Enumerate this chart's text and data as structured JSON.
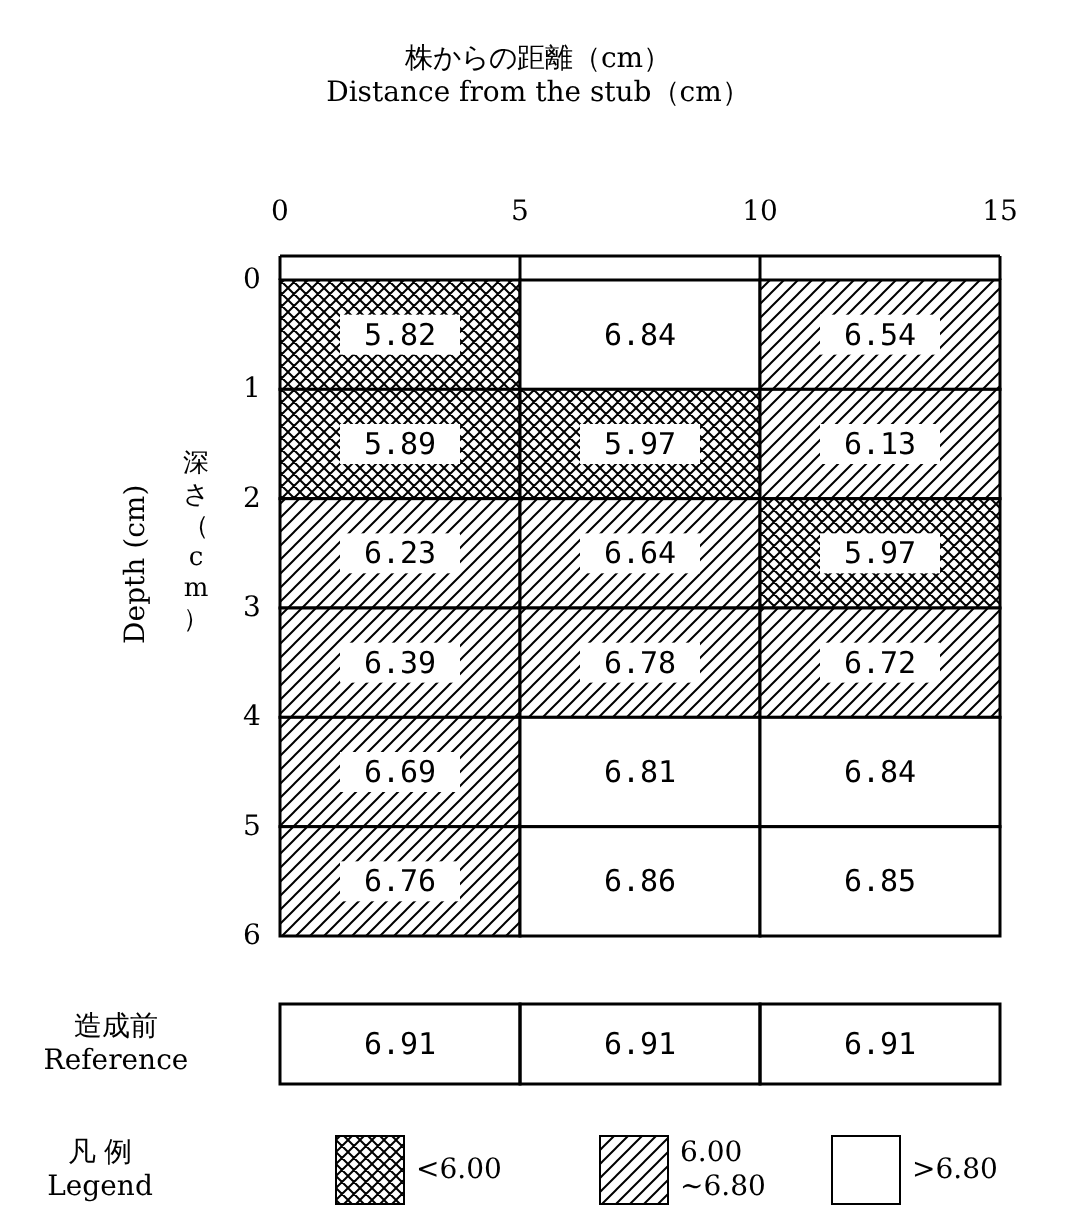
{
  "chart_data": [
    {
      "type": "heatmap",
      "xlabel": "株からの距離（cm）\nDistance from the stub（cm）",
      "ylabel": "Depth (cm)",
      "annotations": [
        "深さ（cm）",
        "<6.00",
        "6.00\n~6.80",
        ">6.80"
      ],
      "xlim": [
        0,
        15
      ],
      "xticks": [
        0,
        5,
        10,
        15
      ],
      "ylim": [
        6,
        0
      ],
      "yticks": [
        0,
        1,
        2,
        3,
        4,
        5,
        6
      ],
      "cells": [
        [
          5.82,
          6.84,
          6.54
        ],
        [
          5.89,
          5.97,
          6.13
        ],
        [
          6.23,
          6.64,
          5.97
        ],
        [
          6.39,
          6.78,
          6.72
        ],
        [
          6.69,
          6.81,
          6.84
        ],
        [
          6.76,
          6.86,
          6.85
        ]
      ],
      "data_labels": true,
      "legend_title": "凡 例\nLegend"
    },
    {
      "type": "other",
      "annotations": [
        "造成前\nReference",
        "6.91",
        "6.91",
        "6.91"
      ]
    }
  ]
}
